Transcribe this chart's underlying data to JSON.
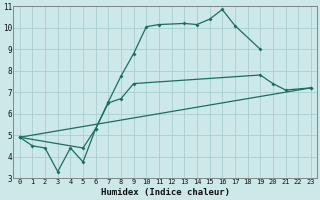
{
  "xlabel": "Humidex (Indice chaleur)",
  "bg_color": "#cce8e8",
  "grid_color": "#aacece",
  "line_color": "#1a6e60",
  "xlim": [
    -0.5,
    23.5
  ],
  "ylim": [
    3,
    11
  ],
  "xticks": [
    0,
    1,
    2,
    3,
    4,
    5,
    6,
    7,
    8,
    9,
    10,
    11,
    12,
    13,
    14,
    15,
    16,
    17,
    18,
    19,
    20,
    21,
    22,
    23
  ],
  "yticks": [
    3,
    4,
    5,
    6,
    7,
    8,
    9,
    10,
    11
  ],
  "curve1_x": [
    0,
    1,
    2,
    3,
    4,
    5,
    6,
    7,
    8,
    9,
    10,
    11,
    13,
    14,
    15,
    16,
    17,
    19
  ],
  "curve1_y": [
    4.9,
    4.5,
    4.4,
    3.3,
    4.4,
    3.75,
    5.3,
    6.55,
    7.75,
    8.8,
    10.05,
    10.15,
    10.2,
    10.15,
    10.4,
    10.85,
    10.1,
    9.0
  ],
  "curve2_x": [
    0,
    5,
    6,
    7,
    8,
    9,
    19,
    20,
    21,
    23
  ],
  "curve2_y": [
    4.9,
    4.4,
    5.3,
    6.5,
    6.7,
    7.4,
    7.8,
    7.4,
    7.1,
    7.2
  ],
  "curve3_x": [
    0,
    23
  ],
  "curve3_y": [
    4.9,
    7.2
  ]
}
